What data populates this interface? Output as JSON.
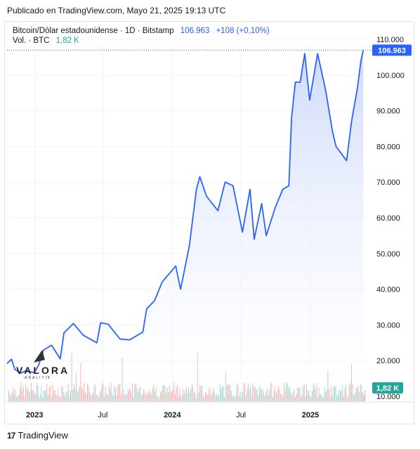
{
  "caption": "Publicado en TradingView.com, Mayo 21, 2025 19:13 UTC",
  "legend": {
    "symbol": "Bitcoin/Dólar estadounidense · 1D · Bitstamp",
    "last": "106.963",
    "change": "+108 (+0,10%)"
  },
  "volume": {
    "label": "Vol. · BTC",
    "value": "1,82 K"
  },
  "price_badge": "106.963",
  "volume_badge": "1,82 K",
  "footer": {
    "brand": "TradingView",
    "logo": "tradingview-logo-icon"
  },
  "watermark": {
    "name": "VALORA",
    "sub": "ANALITIK"
  },
  "colors": {
    "line": "#2962ff",
    "area_top": "#c9d6fb",
    "vol_up": "#26a69a",
    "vol_down": "#ef5350",
    "grid": "#f0f3fa"
  },
  "chart_data": {
    "type": "area",
    "title": "Bitcoin/Dólar estadounidense · 1D · Bitstamp",
    "xlabel": "",
    "ylabel": "",
    "ylim": [
      10000,
      110000
    ],
    "y_ticks": [
      "110.000",
      "100.000",
      "90.000",
      "80.000",
      "70.000",
      "60.000",
      "50.000",
      "40.000",
      "30.000",
      "20.000",
      "10.000"
    ],
    "y_tick_values": [
      110000,
      100000,
      90000,
      80000,
      70000,
      60000,
      50000,
      40000,
      30000,
      20000,
      10000
    ],
    "x_ticks": [
      "2023",
      "Jul",
      "2024",
      "Jul",
      "2025"
    ],
    "x_tick_dates": [
      "2023-01-01",
      "2023-07-01",
      "2024-01-01",
      "2024-07-01",
      "2025-01-01"
    ],
    "xlim": [
      "2022-10-20",
      "2025-05-30"
    ],
    "grid": true,
    "series": [
      {
        "x": [
          "2022-10-20",
          "2022-11-01",
          "2022-11-10",
          "2022-11-25",
          "2022-12-10",
          "2022-12-31",
          "2023-01-12",
          "2023-01-25",
          "2023-02-15",
          "2023-03-10",
          "2023-03-20",
          "2023-04-14",
          "2023-05-10",
          "2023-06-15",
          "2023-06-25",
          "2023-07-15",
          "2023-08-15",
          "2023-08-20",
          "2023-09-10",
          "2023-10-15",
          "2023-10-25",
          "2023-11-15",
          "2023-12-05",
          "2024-01-10",
          "2024-01-23",
          "2024-02-15",
          "2024-03-05",
          "2024-03-14",
          "2024-04-01",
          "2024-05-01",
          "2024-05-20",
          "2024-06-10",
          "2024-07-05",
          "2024-07-25",
          "2024-08-05",
          "2024-08-25",
          "2024-09-06",
          "2024-09-30",
          "2024-10-20",
          "2024-11-05",
          "2024-11-12",
          "2024-11-22",
          "2024-12-05",
          "2024-12-17",
          "2024-12-30",
          "2025-01-20",
          "2025-02-10",
          "2025-03-01",
          "2025-03-10",
          "2025-04-07",
          "2025-04-20",
          "2025-05-05",
          "2025-05-15",
          "2025-05-21"
        ],
        "values": [
          19200,
          20400,
          17500,
          16500,
          17200,
          16600,
          18800,
          23000,
          24300,
          20500,
          27800,
          30400,
          27100,
          25000,
          30600,
          30200,
          26100,
          26000,
          25800,
          28000,
          34500,
          36800,
          42000,
          46500,
          40000,
          52000,
          68000,
          71500,
          66000,
          62000,
          70000,
          69000,
          56000,
          68000,
          54000,
          64000,
          55000,
          63000,
          68000,
          69000,
          88000,
          98000,
          98000,
          106000,
          93000,
          106000,
          96000,
          84000,
          80000,
          76000,
          87000,
          96000,
          104000,
          106963
        ]
      }
    ],
    "volume_x": [
      "2022-10",
      "2023-03",
      "2023-06",
      "2023-09",
      "2024-01",
      "2024-03",
      "2024-08",
      "2024-11",
      "2025-01",
      "2025-04"
    ],
    "volume_values": [
      1.2,
      2.8,
      0.9,
      0.6,
      1.7,
      1.9,
      1.3,
      2.4,
      1.5,
      1.82
    ]
  }
}
